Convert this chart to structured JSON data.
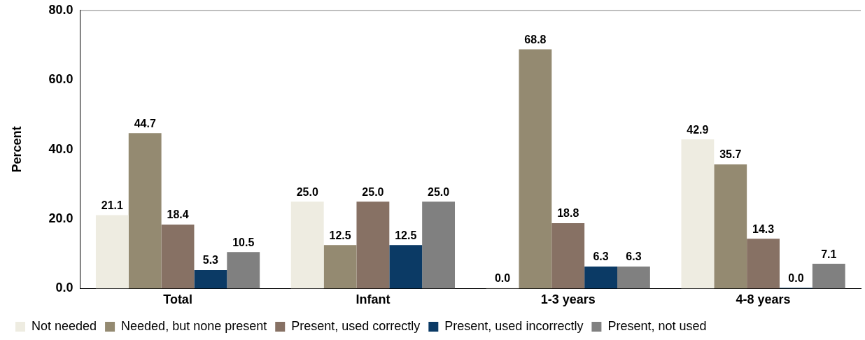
{
  "chart_data": {
    "type": "bar",
    "ylabel": "Percent",
    "categories": [
      "Total",
      "Infant",
      "1-3 years",
      "4-8 years"
    ],
    "series": [
      {
        "name": "Not needed",
        "color": "#eeece1",
        "values": [
          21.1,
          25.0,
          0.0,
          42.9
        ],
        "value_labels": [
          "21.1",
          "25.0",
          "0.0",
          "42.9"
        ]
      },
      {
        "name": "Needed, but none present",
        "color": "#948a71",
        "values": [
          44.7,
          12.5,
          68.8,
          35.7
        ],
        "value_labels": [
          "44.7",
          "12.5",
          "68.8",
          "35.7"
        ]
      },
      {
        "name": "Present, used correctly",
        "color": "#877164",
        "values": [
          18.4,
          25.0,
          18.8,
          14.3
        ],
        "value_labels": [
          "18.4",
          "25.0",
          "18.8",
          "14.3"
        ]
      },
      {
        "name": "Present, used incorrectly",
        "color": "#0b3a65",
        "values": [
          5.3,
          12.5,
          6.3,
          0.0
        ],
        "value_labels": [
          "5.3",
          "12.5",
          "6.3",
          "0.0"
        ]
      },
      {
        "name": "Present, not used",
        "color": "#808080",
        "values": [
          10.5,
          25.0,
          6.3,
          7.1
        ],
        "value_labels": [
          "10.5",
          "25.0",
          "6.3",
          "7.1"
        ]
      }
    ],
    "ylim": [
      0,
      80
    ],
    "yticks": [
      {
        "value": 0,
        "label": "0.0"
      },
      {
        "value": 20,
        "label": "20.0"
      },
      {
        "value": 40,
        "label": "40.0"
      },
      {
        "value": 60,
        "label": "60.0"
      },
      {
        "value": 80,
        "label": "80.0"
      }
    ],
    "grid": false,
    "legend": "bottom"
  }
}
